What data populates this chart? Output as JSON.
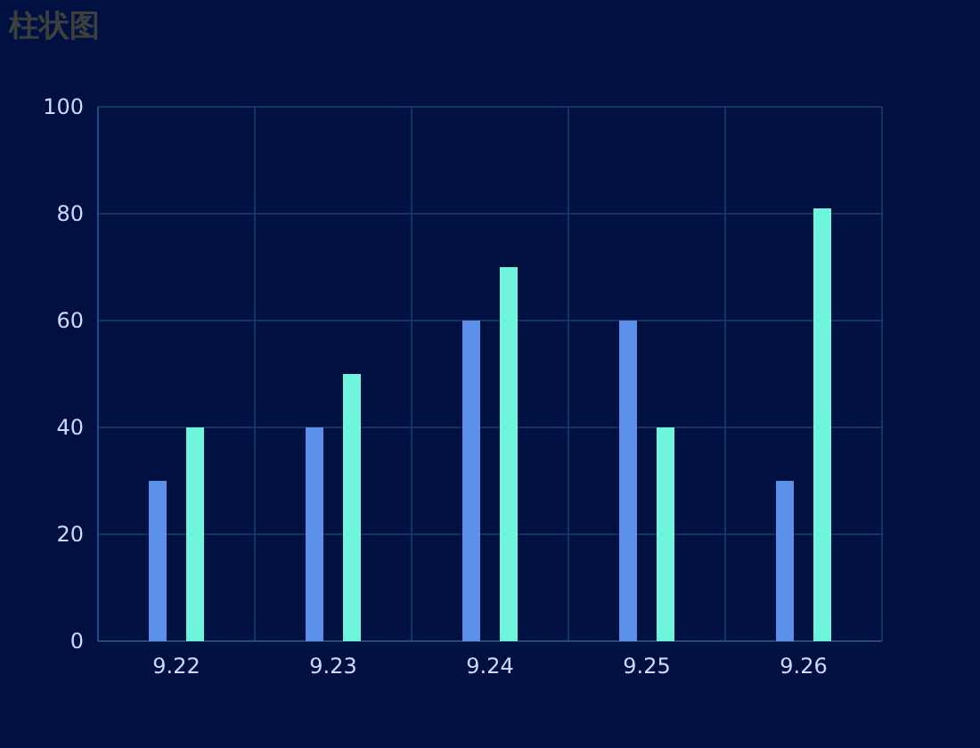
{
  "chart_data": {
    "type": "bar",
    "title": "柱状图",
    "categories": [
      "9.22",
      "9.23",
      "9.24",
      "9.25",
      "9.26"
    ],
    "series": [
      {
        "color": "#5b8fe8",
        "values": [
          30,
          40,
          60,
          60,
          30
        ]
      },
      {
        "color": "#6ff5de",
        "values": [
          40,
          50,
          70,
          40,
          81
        ]
      }
    ],
    "ylim": [
      0,
      100
    ],
    "yticks": [
      0,
      20,
      40,
      60,
      80,
      100
    ],
    "grid": true
  }
}
